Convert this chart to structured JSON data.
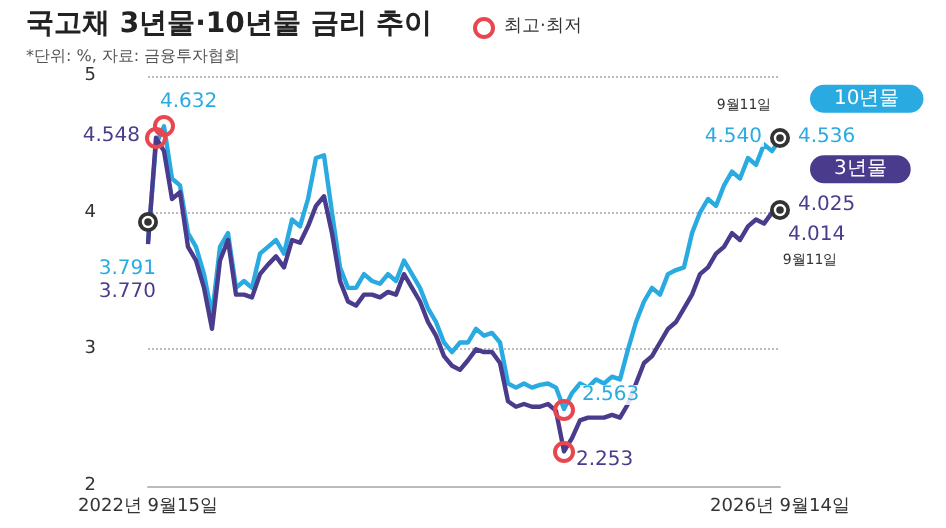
{
  "chart_data": {
    "type": "line",
    "title": "국고채 3년물·10년물 금리 추이",
    "subtitle": "*단위: %, 자료: 금융투자협회",
    "categories": [
      "2022년 9월15일",
      null,
      null,
      null,
      null,
      null,
      null,
      null,
      null,
      null,
      null,
      null,
      null,
      null,
      null,
      null,
      null,
      null,
      null,
      null,
      null,
      null,
      null,
      null,
      null,
      null,
      null,
      null,
      null,
      null,
      null,
      null,
      null,
      null,
      null,
      null,
      null,
      null,
      null,
      null,
      null,
      null,
      null,
      null,
      null,
      null,
      null,
      null,
      null,
      null,
      null,
      null,
      null,
      null,
      null,
      null,
      null,
      null,
      null,
      null,
      null,
      null,
      null,
      null,
      null,
      null,
      null,
      null,
      null,
      null,
      null,
      null,
      null,
      null,
      null,
      null,
      null,
      null,
      null,
      "2026년 9월14일"
    ],
    "series": [
      {
        "name": "10년물",
        "color": "#29abe2",
        "values": [
          3.791,
          4.5,
          4.632,
          4.25,
          4.2,
          3.85,
          3.75,
          3.55,
          3.25,
          3.75,
          3.85,
          3.45,
          3.5,
          3.45,
          3.7,
          3.75,
          3.8,
          3.7,
          3.95,
          3.9,
          4.1,
          4.4,
          4.42,
          4.0,
          3.6,
          3.45,
          3.45,
          3.55,
          3.5,
          3.48,
          3.55,
          3.5,
          3.65,
          3.55,
          3.45,
          3.3,
          3.2,
          3.05,
          2.98,
          3.05,
          3.05,
          3.15,
          3.1,
          3.12,
          3.05,
          2.75,
          2.72,
          2.75,
          2.72,
          2.74,
          2.75,
          2.72,
          2.563,
          2.68,
          2.75,
          2.72,
          2.78,
          2.75,
          2.8,
          2.78,
          3.0,
          3.2,
          3.35,
          3.45,
          3.4,
          3.55,
          3.58,
          3.6,
          3.85,
          4.0,
          4.1,
          4.05,
          4.2,
          4.3,
          4.25,
          4.4,
          4.35,
          4.5,
          4.45,
          4.54
        ]
      },
      {
        "name": "3년물",
        "color": "#4a3b8c",
        "values": [
          3.77,
          4.548,
          4.45,
          4.1,
          4.15,
          3.75,
          3.65,
          3.45,
          3.15,
          3.65,
          3.8,
          3.4,
          3.4,
          3.38,
          3.55,
          3.62,
          3.68,
          3.6,
          3.8,
          3.78,
          3.9,
          4.05,
          4.12,
          3.85,
          3.5,
          3.35,
          3.32,
          3.4,
          3.4,
          3.38,
          3.42,
          3.4,
          3.55,
          3.45,
          3.35,
          3.2,
          3.1,
          2.95,
          2.88,
          2.85,
          2.92,
          3.0,
          2.98,
          2.98,
          2.9,
          2.62,
          2.58,
          2.6,
          2.58,
          2.58,
          2.6,
          2.55,
          2.253,
          2.35,
          2.48,
          2.5,
          2.5,
          2.5,
          2.52,
          2.5,
          2.6,
          2.75,
          2.9,
          2.95,
          3.05,
          3.15,
          3.2,
          3.3,
          3.4,
          3.55,
          3.6,
          3.7,
          3.75,
          3.85,
          3.8,
          3.9,
          3.95,
          3.92,
          4.0,
          4.025
        ]
      }
    ],
    "ylim": [
      2,
      5
    ],
    "yticks": [
      2,
      3,
      4,
      5
    ],
    "grid": "y",
    "annotations": [
      "최고·최저",
      "4.632",
      "4.548",
      {
        "text": "3.791",
        "x": "2022년 9월15일",
        "y": 3.791
      },
      {
        "text": "3.770",
        "x": "2022년 9월15일",
        "y": 3.77
      },
      {
        "text": "2.563",
        "y": 2.563
      },
      "2.253",
      {
        "text": "9월11일",
        "x": "2026년 9월14일",
        "y": 4.54
      },
      {
        "text": "4.540",
        "x": "2026년 9월14일",
        "y": 4.54
      },
      {
        "text": "4.536",
        "x": "2026년 9월14일",
        "y": 4.536
      },
      {
        "text": "4.025",
        "x": "2026년 9월14일",
        "y": 4.025
      },
      {
        "text": "4.014",
        "x": "2026년 9월14일",
        "y": 4.014
      },
      "9월11일"
    ]
  }
}
